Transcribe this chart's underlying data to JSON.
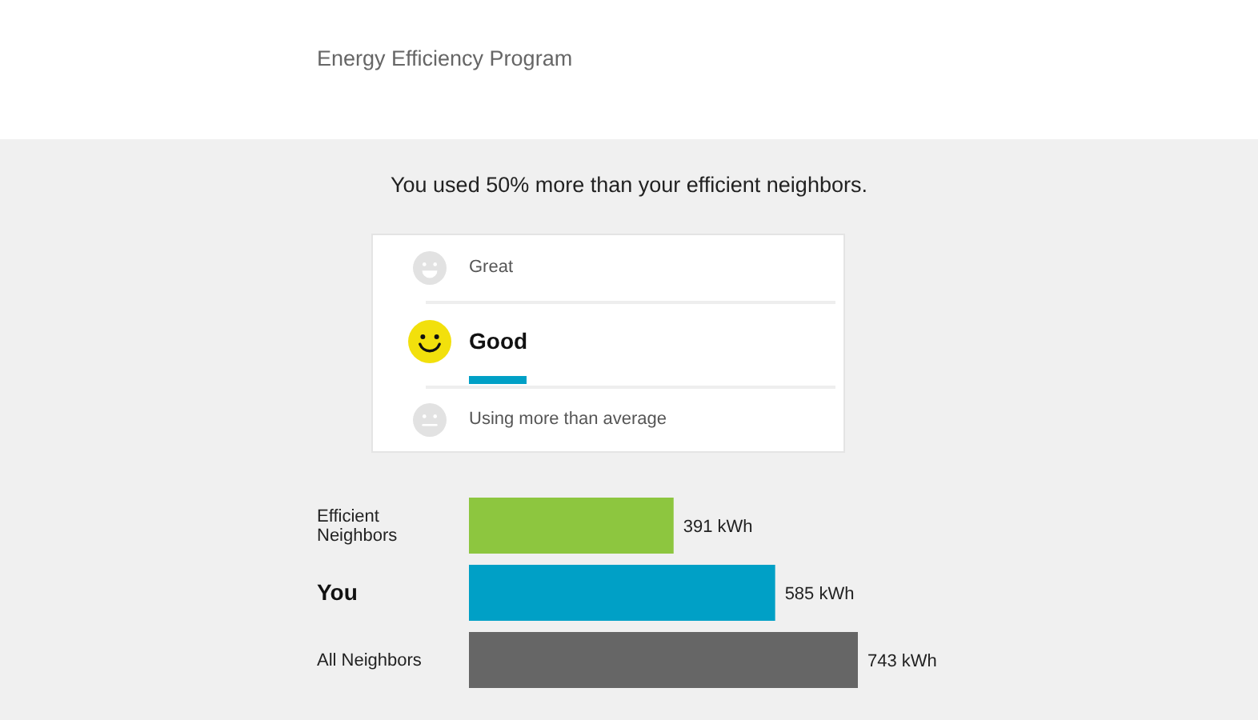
{
  "chart_data": [
    {
      "type": "other",
      "annotations": [
        "Energy Efficiency Program"
      ],
      "title": "You used 50% more than your efficient neighbors.",
      "categories": [
        "Great",
        "Good",
        "Using more than average"
      ]
    },
    {
      "type": "bar",
      "orientation": "horizontal",
      "categories": [
        "Efficient Neighbors",
        "You",
        "All Neighbors"
      ],
      "values": [
        391,
        585,
        743
      ],
      "colors": [
        "#8dc63f",
        "#00a0c6",
        "#666666"
      ],
      "value_labels": [
        "391 kWh",
        "585 kWh",
        "743 kWh"
      ]
    }
  ]
}
